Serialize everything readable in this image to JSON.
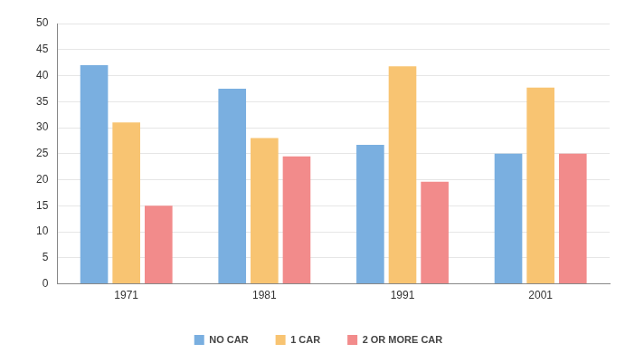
{
  "chart_data": {
    "type": "bar",
    "categories": [
      "1971",
      "1981",
      "1991",
      "2001"
    ],
    "series": [
      {
        "name": "NO CAR",
        "color": "#7aafe0",
        "values": [
          42,
          37.5,
          26.7,
          25
        ]
      },
      {
        "name": "1 CAR",
        "color": "#f8c472",
        "values": [
          31,
          28,
          41.8,
          37.7
        ]
      },
      {
        "name": "2 OR MORE CAR",
        "color": "#f28b8b",
        "values": [
          15,
          24.5,
          19.6,
          25
        ]
      }
    ],
    "ylim": [
      0,
      50
    ],
    "yticks": [
      0,
      5,
      10,
      15,
      20,
      25,
      30,
      35,
      40,
      45,
      50
    ],
    "grid": true,
    "legend": "bottom"
  }
}
